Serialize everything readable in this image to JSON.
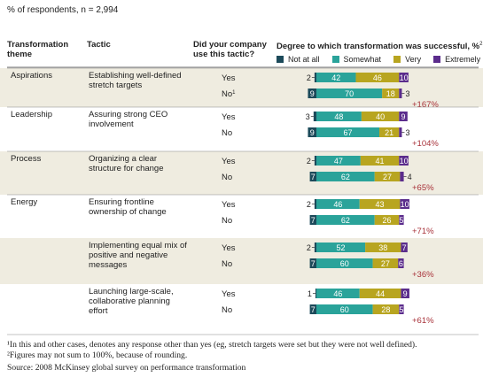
{
  "subtitle": "% of respondents, n = 2,994",
  "headers": {
    "theme": "Transformation theme",
    "tactic": "Tactic",
    "did": "Did your company use this tactic?",
    "degree": "Degree to which transformation was successful, %",
    "degree_sup": "2"
  },
  "legend": [
    {
      "label": "Not at all",
      "color": "#1c4a5a"
    },
    {
      "label": "Somewhat",
      "color": "#2aa39a"
    },
    {
      "label": "Very",
      "color": "#b8a520"
    },
    {
      "label": "Extremely",
      "color": "#5b2c8c"
    }
  ],
  "footnotes": [
    "¹In this and other cases, denotes any response other than yes (eg, stretch targets were set but they were not well defined).",
    "²Figures may not sum to 100%, because of rounding."
  ],
  "source": "Source: 2008 McKinsey global survey on performance transformation",
  "chart_data": {
    "type": "bar",
    "stacked": true,
    "series_names": [
      "Not at all",
      "Somewhat",
      "Very",
      "Extremely"
    ],
    "colors": [
      "#1c4a5a",
      "#2aa39a",
      "#b8a520",
      "#5b2c8c"
    ],
    "groups": [
      {
        "theme": "Aspirations",
        "tactic": "Establishing well-defined stretch targets",
        "shaded": true,
        "rows": [
          {
            "answer": "Yes",
            "values": [
              2,
              42,
              46,
              10
            ]
          },
          {
            "answer": "No",
            "answer_sup": "1",
            "values": [
              9,
              70,
              18,
              3
            ]
          }
        ],
        "delta": "+167%"
      },
      {
        "theme": "Leadership",
        "tactic": "Assuring strong CEO involvement",
        "shaded": false,
        "rows": [
          {
            "answer": "Yes",
            "values": [
              3,
              48,
              40,
              9
            ]
          },
          {
            "answer": "No",
            "values": [
              9,
              67,
              21,
              3
            ]
          }
        ],
        "delta": "+104%"
      },
      {
        "theme": "Process",
        "tactic": "Organizing a clear structure for change",
        "shaded": true,
        "rows": [
          {
            "answer": "Yes",
            "values": [
              2,
              47,
              41,
              10
            ]
          },
          {
            "answer": "No",
            "values": [
              7,
              62,
              27,
              4
            ]
          }
        ],
        "delta": "+65%"
      },
      {
        "theme": "Energy",
        "tactic": "Ensuring frontline ownership of change",
        "shaded": false,
        "rows": [
          {
            "answer": "Yes",
            "values": [
              2,
              46,
              43,
              10
            ]
          },
          {
            "answer": "No",
            "values": [
              7,
              62,
              26,
              5
            ]
          }
        ],
        "delta": "+71%"
      },
      {
        "theme": "",
        "tactic": "Implementing equal mix of positive and negative messages",
        "shaded": true,
        "rows": [
          {
            "answer": "Yes",
            "values": [
              2,
              52,
              38,
              7
            ]
          },
          {
            "answer": "No",
            "values": [
              7,
              60,
              27,
              6
            ]
          }
        ],
        "delta": "+36%"
      },
      {
        "theme": "",
        "tactic": "Launching large-scale, collaborative planning effort",
        "shaded": false,
        "rows": [
          {
            "answer": "Yes",
            "values": [
              1,
              46,
              44,
              9
            ]
          },
          {
            "answer": "No",
            "values": [
              7,
              60,
              28,
              5
            ]
          }
        ],
        "delta": "+61%"
      }
    ]
  }
}
